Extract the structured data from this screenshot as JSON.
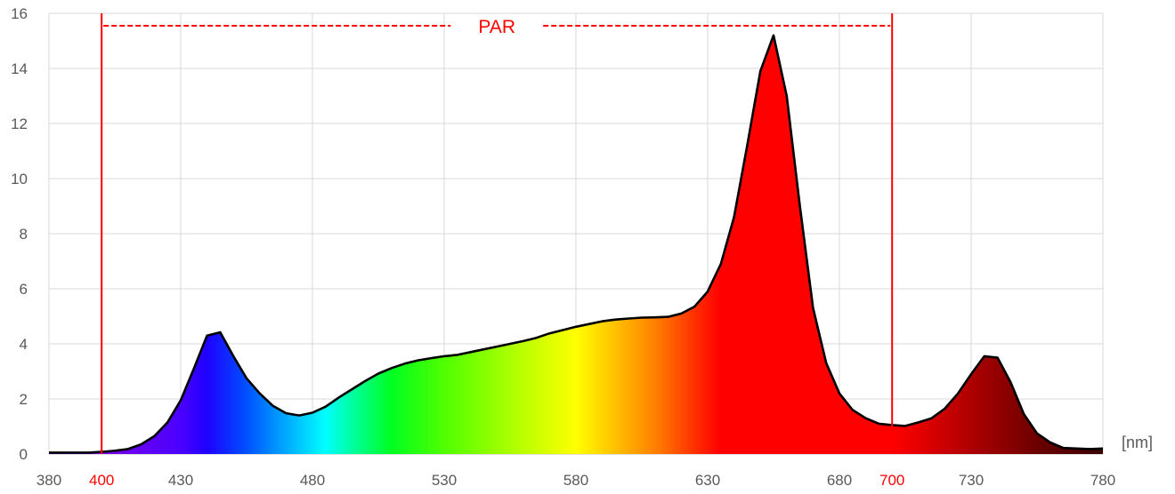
{
  "chart_data": {
    "type": "area",
    "title": "",
    "xlabel": "",
    "ylabel": "",
    "x_unit_label": "[nm]",
    "xlim": [
      380,
      780
    ],
    "ylim": [
      0,
      16
    ],
    "grid": true,
    "legend": "none",
    "x_ticks": [
      380,
      400,
      430,
      480,
      530,
      580,
      630,
      680,
      700,
      730,
      780
    ],
    "x_ticks_highlight": [
      400,
      700
    ],
    "y_ticks": [
      0,
      2,
      4,
      6,
      8,
      10,
      12,
      14,
      16
    ],
    "region": {
      "label": "PAR",
      "start": 400,
      "end": 700,
      "color": "#ff0000"
    },
    "line_color": "#000000",
    "highlight_color": "#ff0000",
    "series": [
      {
        "x": [
          380,
          385,
          390,
          395,
          400,
          405,
          410,
          415,
          420,
          425,
          430,
          435,
          440,
          445,
          450,
          455,
          460,
          465,
          470,
          475,
          480,
          485,
          490,
          495,
          500,
          505,
          510,
          515,
          520,
          525,
          530,
          535,
          540,
          545,
          550,
          555,
          560,
          565,
          570,
          575,
          580,
          585,
          590,
          595,
          600,
          605,
          610,
          615,
          620,
          625,
          630,
          635,
          640,
          645,
          650,
          655,
          660,
          665,
          670,
          675,
          680,
          685,
          690,
          695,
          700,
          705,
          710,
          715,
          720,
          725,
          730,
          735,
          740,
          745,
          750,
          755,
          760,
          765,
          770,
          775,
          780
        ],
        "y": [
          0.05,
          0.05,
          0.05,
          0.05,
          0.08,
          0.12,
          0.18,
          0.35,
          0.65,
          1.15,
          1.95,
          3.1,
          4.3,
          4.42,
          3.55,
          2.75,
          2.2,
          1.75,
          1.48,
          1.4,
          1.5,
          1.72,
          2.05,
          2.35,
          2.65,
          2.92,
          3.12,
          3.28,
          3.4,
          3.48,
          3.55,
          3.6,
          3.7,
          3.8,
          3.9,
          4.0,
          4.1,
          4.22,
          4.38,
          4.5,
          4.62,
          4.72,
          4.82,
          4.88,
          4.92,
          4.95,
          4.96,
          4.98,
          5.1,
          5.35,
          5.9,
          6.9,
          8.6,
          11.2,
          13.9,
          15.2,
          13.0,
          9.0,
          5.3,
          3.3,
          2.2,
          1.6,
          1.3,
          1.1,
          1.05,
          1.02,
          1.15,
          1.3,
          1.65,
          2.2,
          2.9,
          3.55,
          3.5,
          2.6,
          1.45,
          0.75,
          0.42,
          0.22,
          0.2,
          0.18,
          0.2
        ]
      }
    ]
  }
}
